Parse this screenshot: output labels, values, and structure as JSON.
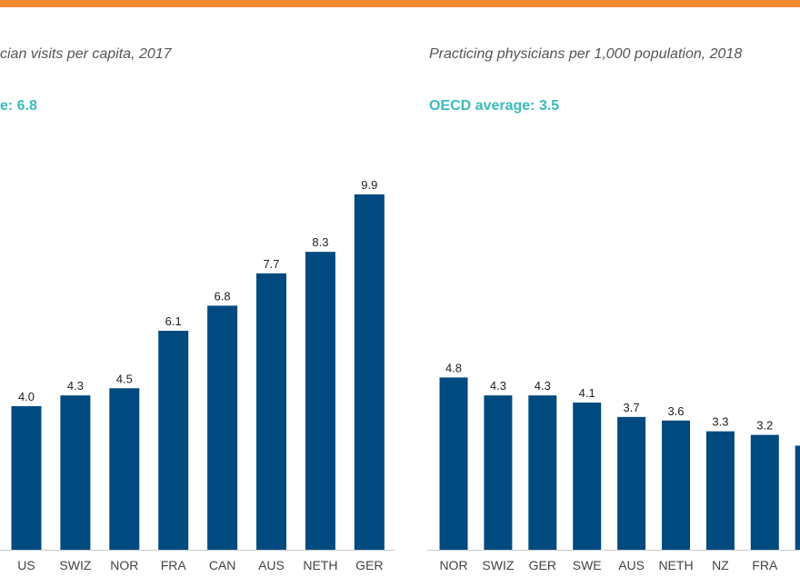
{
  "colors": {
    "accent_rule": "#f08a30",
    "bar": "#004a80",
    "average_text": "#3bbcbc",
    "axis": "#cccccc"
  },
  "chart_data": [
    {
      "type": "bar",
      "title": "cian visits per capita, 2017",
      "average_label": "e: 6.8",
      "categories": [
        "US",
        "SWIZ",
        "NOR",
        "FRA",
        "CAN",
        "AUS",
        "NETH",
        "GER"
      ],
      "values": [
        4.0,
        4.3,
        4.5,
        6.1,
        6.8,
        7.7,
        8.3,
        9.9
      ],
      "value_labels": [
        "4.0",
        "4.3",
        "4.5",
        "6.1",
        "6.8",
        "7.7",
        "8.3",
        "9.9"
      ],
      "ylim": [
        0,
        10
      ],
      "grid": false,
      "xlabel": "",
      "ylabel": ""
    },
    {
      "type": "bar",
      "title": "Practicing physicians per 1,000 population, 2018",
      "average_label": "OECD average: 3.5",
      "categories": [
        "NOR",
        "SWIZ",
        "GER",
        "SWE",
        "AUS",
        "NETH",
        "NZ",
        "FRA",
        ""
      ],
      "values": [
        4.8,
        4.3,
        4.3,
        4.1,
        3.7,
        3.6,
        3.3,
        3.2,
        2.9
      ],
      "value_labels": [
        "4.8",
        "4.3",
        "4.3",
        "4.1",
        "3.7",
        "3.6",
        "3.3",
        "3.2",
        ""
      ],
      "ylim": [
        0,
        10
      ],
      "grid": false,
      "xlabel": "",
      "ylabel": ""
    }
  ]
}
